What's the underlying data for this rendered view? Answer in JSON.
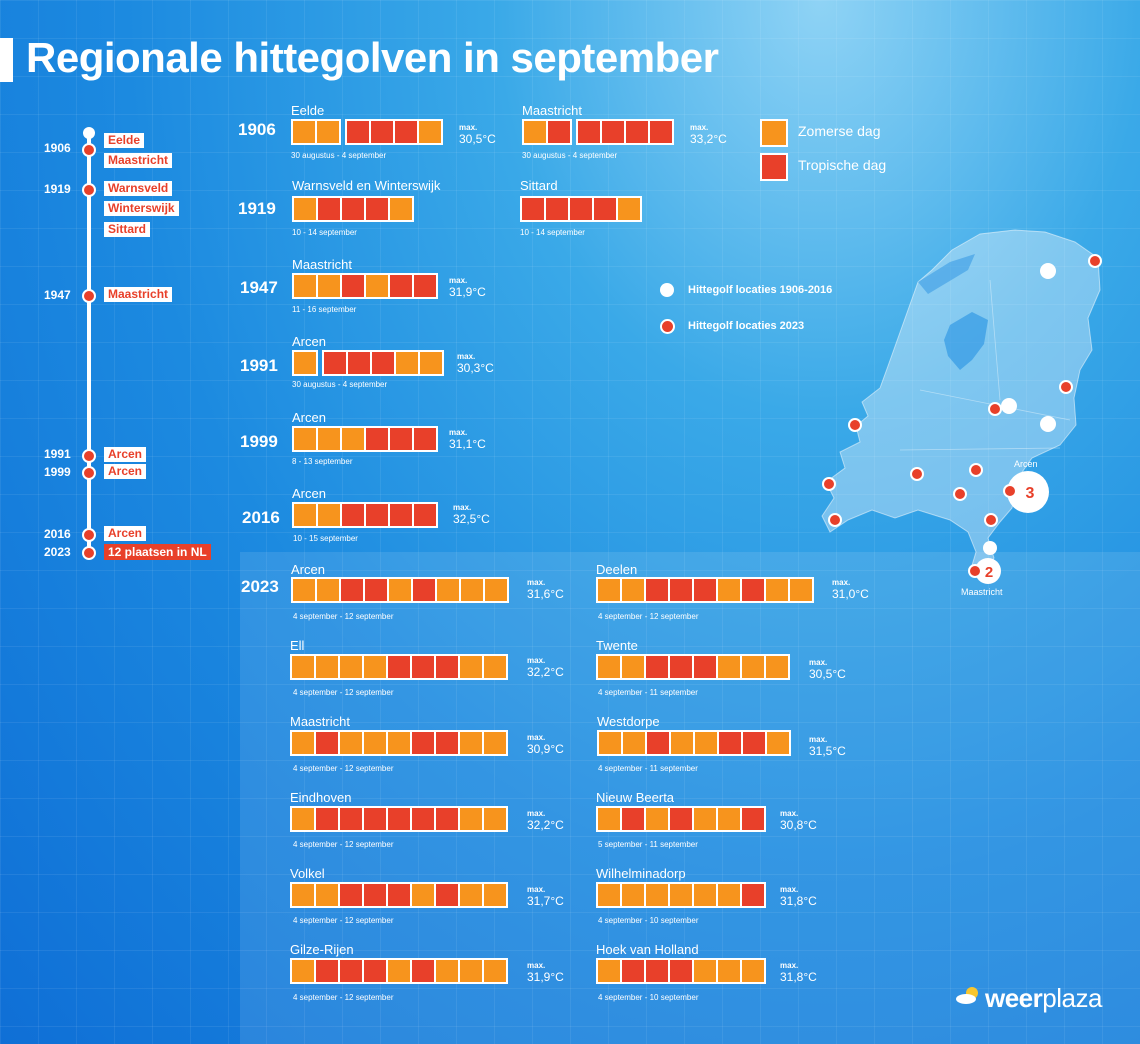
{
  "title": "Regionale hittegolven in september",
  "legend": {
    "zomerse": "Zomerse dag",
    "tropische": "Tropische dag",
    "loc_hist": "Hittegolf locaties 1906-2016",
    "loc_2023": "Hittegolf locaties 2023"
  },
  "colors": {
    "zomerse": "#f7941d",
    "tropische": "#e8402a"
  },
  "timeline": [
    {
      "year": "1906",
      "labels": [
        "Eelde",
        "Maastricht"
      ]
    },
    {
      "year": "1919",
      "labels": [
        "Warnsveld",
        "Winterswijk",
        "Sittard"
      ]
    },
    {
      "year": "1947",
      "labels": [
        "Maastricht"
      ]
    },
    {
      "year": "1991",
      "labels": [
        "Arcen"
      ]
    },
    {
      "year": "1999",
      "labels": [
        "Arcen"
      ]
    },
    {
      "year": "2016",
      "labels": [
        "Arcen"
      ]
    },
    {
      "year": "2023",
      "labels": [
        "12 plaatsen in NL"
      ]
    }
  ],
  "map": {
    "arcen": "Arcen",
    "arcen_count": "3",
    "maastricht": "Maastricht",
    "maastricht_count": "2"
  },
  "logo": {
    "brand_a": "weer",
    "brand_b": "plaza"
  },
  "chart_data": {
    "type": "table",
    "title": "Regionale hittegolven in september",
    "legend": [
      "Zomerse dag",
      "Tropische dag"
    ],
    "events": [
      {
        "year": "1906",
        "station": "Eelde",
        "days": [
          [
            "Z",
            "Z"
          ],
          [
            "T",
            "T",
            "T",
            "Z"
          ]
        ],
        "max_label": "max.",
        "max": "30,5°C",
        "dates": "30 augustus - 4 september"
      },
      {
        "year": "",
        "station": "Maastricht",
        "days": [
          [
            "Z",
            "T"
          ],
          [
            "T",
            "T",
            "T",
            "T"
          ]
        ],
        "max_label": "max.",
        "max": "33,2°C",
        "dates": "30 augustus - 4 september"
      },
      {
        "year": "1919",
        "station": "Warnsveld en Winterswijk",
        "days": [
          [
            "Z",
            "T",
            "T",
            "T",
            "Z"
          ]
        ],
        "max_label": "",
        "max": "",
        "dates": "10 - 14 september"
      },
      {
        "year": "",
        "station": "Sittard",
        "days": [
          [
            "T",
            "T",
            "T",
            "T",
            "Z"
          ]
        ],
        "max_label": "",
        "max": "",
        "dates": "10 - 14 september"
      },
      {
        "year": "1947",
        "station": "Maastricht",
        "days": [
          [
            "Z",
            "Z",
            "T",
            "Z",
            "T",
            "T"
          ]
        ],
        "max_label": "max.",
        "max": "31,9°C",
        "dates": "11 - 16 september"
      },
      {
        "year": "1991",
        "station": "Arcen",
        "days": [
          [
            "Z"
          ],
          [
            "T",
            "T",
            "T",
            "Z",
            "Z"
          ]
        ],
        "max_label": "max.",
        "max": "30,3°C",
        "dates": "30 augustus - 4 september"
      },
      {
        "year": "1999",
        "station": "Arcen",
        "days": [
          [
            "Z",
            "Z",
            "Z",
            "T",
            "T",
            "T"
          ]
        ],
        "max_label": "max.",
        "max": "31,1°C",
        "dates": "8 - 13 september"
      },
      {
        "year": "2016",
        "station": "Arcen",
        "days": [
          [
            "Z",
            "Z",
            "T",
            "T",
            "T",
            "T"
          ]
        ],
        "max_label": "max.",
        "max": "32,5°C",
        "dates": "10 - 15 september"
      },
      {
        "year": "2023",
        "station": "Arcen",
        "days": [
          [
            "Z",
            "Z",
            "T",
            "T",
            "Z",
            "T",
            "Z",
            "Z",
            "Z"
          ]
        ],
        "max_label": "max.",
        "max": "31,6°C",
        "dates": "4 september - 12 september"
      },
      {
        "year": "",
        "station": "Deelen",
        "days": [
          [
            "Z",
            "Z",
            "T",
            "T",
            "T",
            "Z",
            "T",
            "Z",
            "Z"
          ]
        ],
        "max_label": "max.",
        "max": "31,0°C",
        "dates": "4 september - 12 september"
      },
      {
        "year": "",
        "station": "Ell",
        "days": [
          [
            "Z",
            "Z",
            "Z",
            "Z",
            "T",
            "T",
            "T",
            "Z",
            "Z"
          ]
        ],
        "max_label": "max.",
        "max": "32,2°C",
        "dates": "4 september - 12 september"
      },
      {
        "year": "",
        "station": "Twente",
        "days": [
          [
            "Z",
            "Z",
            "T",
            "T",
            "T",
            "Z",
            "Z",
            "Z"
          ]
        ],
        "max_label": "max.",
        "max": "30,5°C",
        "dates": "4 september - 11 september"
      },
      {
        "year": "",
        "station": "Maastricht",
        "days": [
          [
            "Z",
            "T",
            "Z",
            "Z",
            "Z",
            "T",
            "T",
            "Z",
            "Z"
          ]
        ],
        "max_label": "max.",
        "max": "30,9°C",
        "dates": "4 september - 12 september"
      },
      {
        "year": "",
        "station": "Westdorpe",
        "days": [
          [
            "Z",
            "Z",
            "T",
            "Z",
            "Z",
            "T",
            "T",
            "Z"
          ]
        ],
        "max_label": "max.",
        "max": "31,5°C",
        "dates": "4 september - 11 september"
      },
      {
        "year": "",
        "station": "Eindhoven",
        "days": [
          [
            "Z",
            "T",
            "T",
            "T",
            "T",
            "T",
            "T",
            "Z",
            "Z"
          ]
        ],
        "max_label": "max.",
        "max": "32,2°C",
        "dates": "4 september - 12 september"
      },
      {
        "year": "",
        "station": "Nieuw Beerta",
        "days": [
          [
            "Z",
            "T",
            "Z",
            "T",
            "Z",
            "Z",
            "T"
          ]
        ],
        "max_label": "max.",
        "max": "30,8°C",
        "dates": "5 september - 11 september"
      },
      {
        "year": "",
        "station": "Volkel",
        "days": [
          [
            "Z",
            "Z",
            "T",
            "T",
            "T",
            "Z",
            "T",
            "Z",
            "Z"
          ]
        ],
        "max_label": "max.",
        "max": "31,7°C",
        "dates": "4 september - 12 september"
      },
      {
        "year": "",
        "station": "Wilhelminadorp",
        "days": [
          [
            "Z",
            "Z",
            "Z",
            "Z",
            "Z",
            "Z",
            "T"
          ]
        ],
        "max_label": "max.",
        "max": "31,8°C",
        "dates": "4 september - 10 september"
      },
      {
        "year": "",
        "station": "Gilze-Rijen",
        "days": [
          [
            "Z",
            "T",
            "T",
            "T",
            "Z",
            "T",
            "Z",
            "Z",
            "Z"
          ]
        ],
        "max_label": "max.",
        "max": "31,9°C",
        "dates": "4 september - 12 september"
      },
      {
        "year": "",
        "station": "Hoek van Holland",
        "days": [
          [
            "Z",
            "T",
            "T",
            "T",
            "Z",
            "Z",
            "Z"
          ]
        ],
        "max_label": "max.",
        "max": "31,8°C",
        "dates": "4 september - 10 september"
      }
    ]
  }
}
